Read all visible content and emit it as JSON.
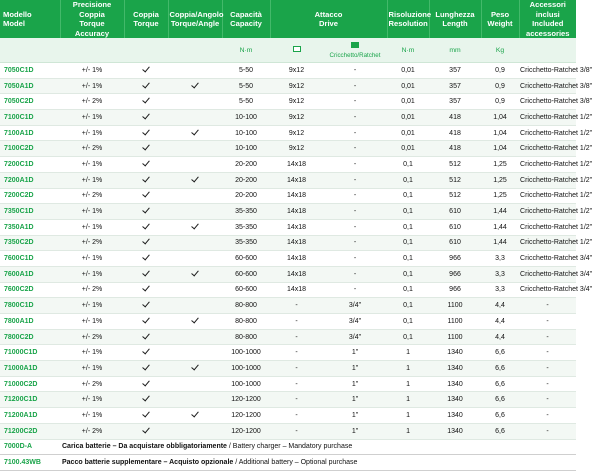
{
  "headers": [
    {
      "it": "Modello",
      "en": "Model"
    },
    {
      "it": "Precisione Coppia",
      "en": "Torque Accuracy"
    },
    {
      "it": "Coppia",
      "en": "Torque"
    },
    {
      "it": "Coppia/Angolo",
      "en": "Torque/Angle"
    },
    {
      "it": "Capacità",
      "en": "Capacity"
    },
    {
      "it": "Attacco",
      "en": "Drive"
    },
    {
      "it": "Risoluzione",
      "en": "Resolution"
    },
    {
      "it": "Lunghezza",
      "en": "Length"
    },
    {
      "it": "Peso",
      "en": "Weight"
    },
    {
      "it": "Accessori inclusi",
      "en": "Included accessories"
    }
  ],
  "units": {
    "capacity": "N·m",
    "drive_ratchet": "Cricchetto/Ratchet",
    "resolution": "N·m",
    "length": "mm",
    "weight": "Kg"
  },
  "rows": [
    {
      "model": "7050C1D",
      "accuracy": "+/- 1%",
      "torque": true,
      "angle": false,
      "capacity": "5-50",
      "drive_sq": "9x12",
      "drive_r": "-",
      "resolution": "0,01",
      "length": "357",
      "weight": "0,9",
      "accessory": "Cricchetto-Ratchet 3/8\""
    },
    {
      "model": "7050A1D",
      "accuracy": "+/- 1%",
      "torque": true,
      "angle": true,
      "capacity": "5-50",
      "drive_sq": "9x12",
      "drive_r": "-",
      "resolution": "0,01",
      "length": "357",
      "weight": "0,9",
      "accessory": "Cricchetto-Ratchet 3/8\""
    },
    {
      "model": "7050C2D",
      "accuracy": "+/- 2%",
      "torque": true,
      "angle": false,
      "capacity": "5-50",
      "drive_sq": "9x12",
      "drive_r": "-",
      "resolution": "0,01",
      "length": "357",
      "weight": "0,9",
      "accessory": "Cricchetto-Ratchet 3/8\""
    },
    {
      "model": "7100C1D",
      "accuracy": "+/- 1%",
      "torque": true,
      "angle": false,
      "capacity": "10-100",
      "drive_sq": "9x12",
      "drive_r": "-",
      "resolution": "0,01",
      "length": "418",
      "weight": "1,04",
      "accessory": "Cricchetto-Ratchet 1/2\""
    },
    {
      "model": "7100A1D",
      "accuracy": "+/- 1%",
      "torque": true,
      "angle": true,
      "capacity": "10-100",
      "drive_sq": "9x12",
      "drive_r": "-",
      "resolution": "0,01",
      "length": "418",
      "weight": "1,04",
      "accessory": "Cricchetto-Ratchet 1/2\""
    },
    {
      "model": "7100C2D",
      "accuracy": "+/- 2%",
      "torque": true,
      "angle": false,
      "capacity": "10-100",
      "drive_sq": "9x12",
      "drive_r": "-",
      "resolution": "0,01",
      "length": "418",
      "weight": "1,04",
      "accessory": "Cricchetto-Ratchet 1/2\""
    },
    {
      "model": "7200C1D",
      "accuracy": "+/- 1%",
      "torque": true,
      "angle": false,
      "capacity": "20-200",
      "drive_sq": "14x18",
      "drive_r": "-",
      "resolution": "0,1",
      "length": "512",
      "weight": "1,25",
      "accessory": "Cricchetto-Ratchet 1/2\""
    },
    {
      "model": "7200A1D",
      "accuracy": "+/- 1%",
      "torque": true,
      "angle": true,
      "capacity": "20-200",
      "drive_sq": "14x18",
      "drive_r": "-",
      "resolution": "0,1",
      "length": "512",
      "weight": "1,25",
      "accessory": "Cricchetto-Ratchet 1/2\""
    },
    {
      "model": "7200C2D",
      "accuracy": "+/- 2%",
      "torque": true,
      "angle": false,
      "capacity": "20-200",
      "drive_sq": "14x18",
      "drive_r": "-",
      "resolution": "0,1",
      "length": "512",
      "weight": "1,25",
      "accessory": "Cricchetto-Ratchet 1/2\""
    },
    {
      "model": "7350C1D",
      "accuracy": "+/- 1%",
      "torque": true,
      "angle": false,
      "capacity": "35-350",
      "drive_sq": "14x18",
      "drive_r": "-",
      "resolution": "0,1",
      "length": "610",
      "weight": "1,44",
      "accessory": "Cricchetto-Ratchet 1/2\""
    },
    {
      "model": "7350A1D",
      "accuracy": "+/- 1%",
      "torque": true,
      "angle": true,
      "capacity": "35-350",
      "drive_sq": "14x18",
      "drive_r": "-",
      "resolution": "0,1",
      "length": "610",
      "weight": "1,44",
      "accessory": "Cricchetto-Ratchet 1/2\""
    },
    {
      "model": "7350C2D",
      "accuracy": "+/- 2%",
      "torque": true,
      "angle": false,
      "capacity": "35-350",
      "drive_sq": "14x18",
      "drive_r": "-",
      "resolution": "0,1",
      "length": "610",
      "weight": "1,44",
      "accessory": "Cricchetto-Ratchet 1/2\""
    },
    {
      "model": "7600C1D",
      "accuracy": "+/- 1%",
      "torque": true,
      "angle": false,
      "capacity": "60-600",
      "drive_sq": "14x18",
      "drive_r": "-",
      "resolution": "0,1",
      "length": "966",
      "weight": "3,3",
      "accessory": "Cricchetto-Ratchet 3/4\""
    },
    {
      "model": "7600A1D",
      "accuracy": "+/- 1%",
      "torque": true,
      "angle": true,
      "capacity": "60-600",
      "drive_sq": "14x18",
      "drive_r": "-",
      "resolution": "0,1",
      "length": "966",
      "weight": "3,3",
      "accessory": "Cricchetto-Ratchet 3/4\""
    },
    {
      "model": "7600C2D",
      "accuracy": "+/- 2%",
      "torque": true,
      "angle": false,
      "capacity": "60-600",
      "drive_sq": "14x18",
      "drive_r": "-",
      "resolution": "0,1",
      "length": "966",
      "weight": "3,3",
      "accessory": "Cricchetto-Ratchet 3/4\""
    },
    {
      "model": "7800C1D",
      "accuracy": "+/- 1%",
      "torque": true,
      "angle": false,
      "capacity": "80-800",
      "drive_sq": "-",
      "drive_r": "3/4\"",
      "resolution": "0,1",
      "length": "1100",
      "weight": "4,4",
      "accessory": "-"
    },
    {
      "model": "7800A1D",
      "accuracy": "+/- 1%",
      "torque": true,
      "angle": true,
      "capacity": "80-800",
      "drive_sq": "-",
      "drive_r": "3/4\"",
      "resolution": "0,1",
      "length": "1100",
      "weight": "4,4",
      "accessory": "-"
    },
    {
      "model": "7800C2D",
      "accuracy": "+/- 2%",
      "torque": true,
      "angle": false,
      "capacity": "80-800",
      "drive_sq": "-",
      "drive_r": "3/4\"",
      "resolution": "0,1",
      "length": "1100",
      "weight": "4,4",
      "accessory": "-"
    },
    {
      "model": "71000C1D",
      "accuracy": "+/- 1%",
      "torque": true,
      "angle": false,
      "capacity": "100-1000",
      "drive_sq": "-",
      "drive_r": "1\"",
      "resolution": "1",
      "length": "1340",
      "weight": "6,6",
      "accessory": "-"
    },
    {
      "model": "71000A1D",
      "accuracy": "+/- 1%",
      "torque": true,
      "angle": true,
      "capacity": "100-1000",
      "drive_sq": "-",
      "drive_r": "1\"",
      "resolution": "1",
      "length": "1340",
      "weight": "6,6",
      "accessory": "-"
    },
    {
      "model": "71000C2D",
      "accuracy": "+/- 2%",
      "torque": true,
      "angle": false,
      "capacity": "100-1000",
      "drive_sq": "-",
      "drive_r": "1\"",
      "resolution": "1",
      "length": "1340",
      "weight": "6,6",
      "accessory": "-"
    },
    {
      "model": "71200C1D",
      "accuracy": "+/- 1%",
      "torque": true,
      "angle": false,
      "capacity": "120-1200",
      "drive_sq": "-",
      "drive_r": "1\"",
      "resolution": "1",
      "length": "1340",
      "weight": "6,6",
      "accessory": "-"
    },
    {
      "model": "71200A1D",
      "accuracy": "+/- 1%",
      "torque": true,
      "angle": true,
      "capacity": "120-1200",
      "drive_sq": "-",
      "drive_r": "1\"",
      "resolution": "1",
      "length": "1340",
      "weight": "6,6",
      "accessory": "-"
    },
    {
      "model": "71200C2D",
      "accuracy": "+/- 2%",
      "torque": true,
      "angle": false,
      "capacity": "120-1200",
      "drive_sq": "-",
      "drive_r": "1\"",
      "resolution": "1",
      "length": "1340",
      "weight": "6,6",
      "accessory": "-"
    }
  ],
  "footer": [
    {
      "model": "7000D-A",
      "bold": "Carica batterie – Da acquistare obbligatoriamente",
      "rest": " / Battery charger – Mandatory purchase"
    },
    {
      "model": "7100.43WB",
      "bold": "Pacco batterie supplementare – Acquisto opzionale",
      "rest": " / Additional battery – Optional purchase"
    }
  ],
  "colors": {
    "accent": "#1aa44a",
    "row_alt": "#f3f8f4",
    "check": "#1a1a1a"
  },
  "icons": {
    "check": "check-icon",
    "drive_square": "square-drive-icon",
    "drive_ratchet": "ratchet-drive-icon"
  }
}
